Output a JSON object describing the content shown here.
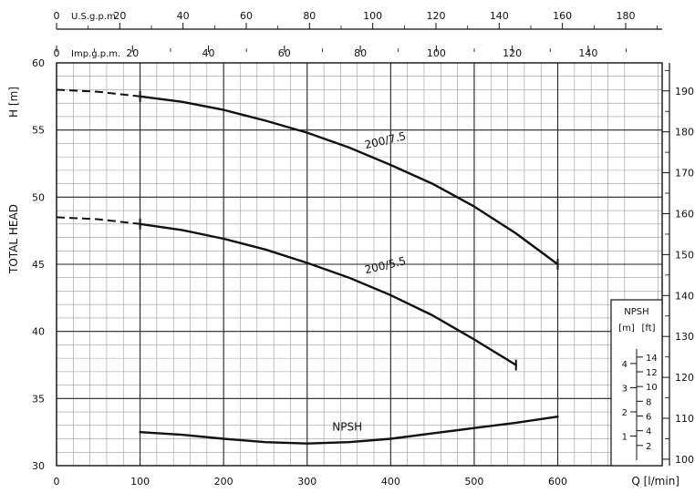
{
  "chart_data": {
    "type": "line",
    "top_axis_us": {
      "unit_label": "U.S.g.p.m.",
      "ticks": [
        0,
        20,
        40,
        60,
        80,
        100,
        120,
        140,
        160,
        180
      ]
    },
    "top_axis_imp": {
      "unit_label": "Imp.g.p.m.",
      "ticks": [
        0,
        20,
        40,
        60,
        80,
        100,
        120,
        140
      ]
    },
    "x_axis": {
      "label": "Q [l/min]",
      "range": [
        0,
        600
      ],
      "ticks": [
        0,
        100,
        200,
        300,
        400,
        500,
        600
      ]
    },
    "y_left": {
      "label_total_head": "TOTAL HEAD",
      "label_unit": "H [m]",
      "range": [
        30,
        60
      ],
      "ticks": [
        30,
        35,
        40,
        45,
        50,
        55,
        60
      ]
    },
    "y_right": {
      "unit": "ft",
      "ticks": [
        100,
        110,
        120,
        130,
        140,
        150,
        160,
        170,
        180,
        190
      ]
    },
    "npsh_axis": {
      "title": "NPSH",
      "unit_m": "[m]",
      "unit_ft": "[ft]",
      "m_ticks": [
        1,
        2,
        3,
        4
      ],
      "ft_ticks": [
        2,
        4,
        6,
        8,
        10,
        12,
        14
      ],
      "range_m": [
        0,
        4.6
      ]
    },
    "grid": true,
    "series": [
      {
        "name": "200/7.5",
        "dashed": [
          [
            0,
            58.0
          ],
          [
            50,
            57.85
          ],
          [
            100,
            57.5
          ]
        ],
        "solid": [
          [
            100,
            57.5
          ],
          [
            150,
            57.1
          ],
          [
            200,
            56.5
          ],
          [
            250,
            55.7
          ],
          [
            300,
            54.8
          ],
          [
            350,
            53.7
          ],
          [
            400,
            52.4
          ],
          [
            450,
            51.0
          ],
          [
            500,
            49.3
          ],
          [
            550,
            47.3
          ],
          [
            600,
            45.0
          ]
        ],
        "label_at": [
          370,
          53.6
        ]
      },
      {
        "name": "200/5.5",
        "dashed": [
          [
            0,
            48.5
          ],
          [
            50,
            48.35
          ],
          [
            100,
            48.0
          ]
        ],
        "solid": [
          [
            100,
            48.0
          ],
          [
            150,
            47.55
          ],
          [
            200,
            46.9
          ],
          [
            250,
            46.1
          ],
          [
            300,
            45.1
          ],
          [
            350,
            44.0
          ],
          [
            400,
            42.7
          ],
          [
            450,
            41.2
          ],
          [
            500,
            39.4
          ],
          [
            550,
            37.5
          ]
        ],
        "label_at": [
          370,
          44.3
        ]
      },
      {
        "name": "NPSH",
        "solid": [
          [
            100,
            32.5
          ],
          [
            150,
            32.3
          ],
          [
            200,
            32.0
          ],
          [
            250,
            31.75
          ],
          [
            300,
            31.65
          ],
          [
            350,
            31.75
          ],
          [
            400,
            32.0
          ],
          [
            450,
            32.4
          ],
          [
            500,
            32.8
          ],
          [
            550,
            33.2
          ],
          [
            600,
            33.65
          ]
        ],
        "label_at": [
          330,
          32.6
        ]
      }
    ]
  }
}
